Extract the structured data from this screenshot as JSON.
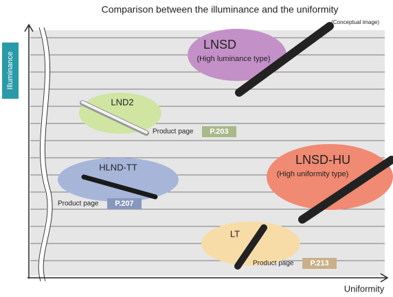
{
  "title": "Comparison between the illuminance and the uniformity",
  "note": "(Conceptual image)",
  "y_axis_label": "Illuminance",
  "x_axis_label": "Uniformity",
  "items": [
    {
      "label": "LNSD",
      "sublabel": "(High luminance type)"
    },
    {
      "label": "LND2",
      "link_text": "Product page",
      "page": "P.203"
    },
    {
      "label": "HLND-TT",
      "link_text": "Product page",
      "page": "P.207"
    },
    {
      "label": "LNSD-HU",
      "sublabel": "(High uniformity type)"
    },
    {
      "label": "LT",
      "link_text": "Product page",
      "page": "P.213"
    }
  ]
}
